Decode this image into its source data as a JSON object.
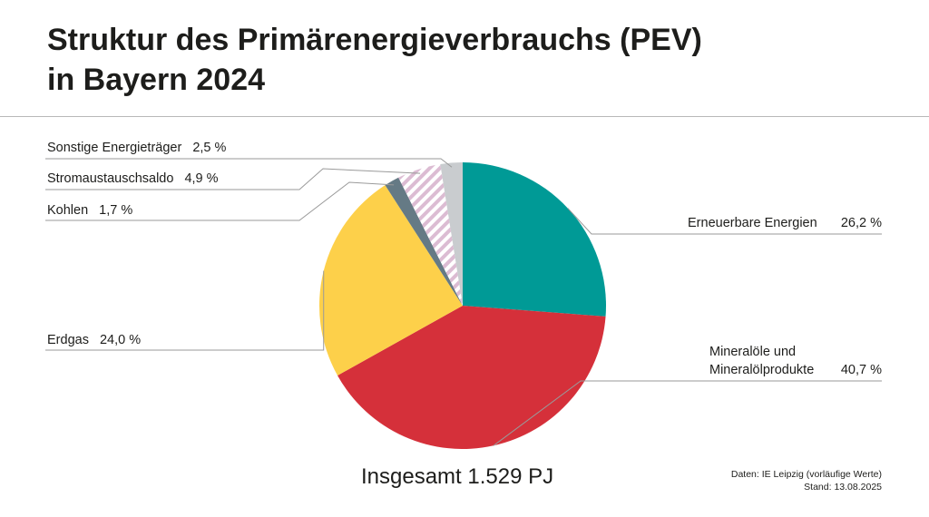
{
  "chart_data": {
    "type": "pie",
    "title": "Struktur des Primärenergieverbrauchs (PEV) in Bayern 2024",
    "categories": [
      "Erneuerbare Energien",
      "Mineralöle und Mineralölprodukte",
      "Erdgas",
      "Kohlen",
      "Stromaustauschsaldo",
      "Sonstige Energieträger"
    ],
    "values": [
      26.2,
      40.7,
      24.0,
      1.7,
      4.9,
      2.5
    ],
    "value_labels": [
      "26,2 %",
      "40,7 %",
      "24,0 %",
      "1,7 %",
      "4,9 %",
      "2,5 %"
    ],
    "colors": [
      "#009a96",
      "#d5303a",
      "#fdd04a",
      "#657a85",
      "#dcbcd3",
      "#c9cccf"
    ],
    "hatched": [
      false,
      false,
      false,
      false,
      true,
      false
    ],
    "total_label": "Insgesamt 1.529 PJ",
    "source": "Daten: IE Leipzig (vorläufige Werte)",
    "date": "Stand: 13.08.2025"
  }
}
